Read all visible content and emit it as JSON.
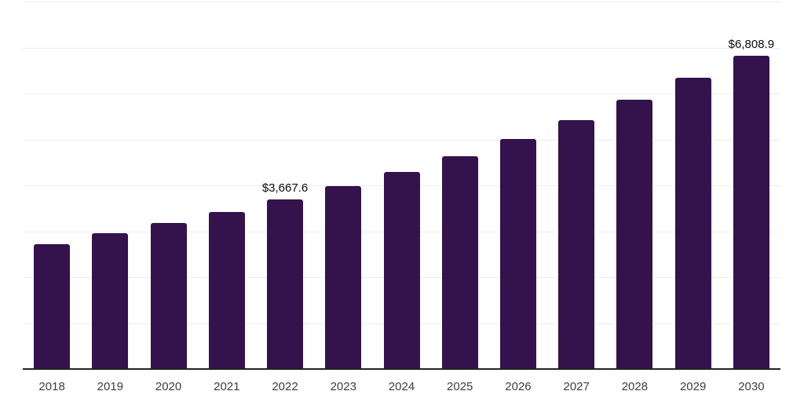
{
  "chart_data": {
    "type": "bar",
    "title": "",
    "xlabel": "",
    "ylabel": "",
    "categories": [
      "2018",
      "2019",
      "2020",
      "2021",
      "2022",
      "2023",
      "2024",
      "2025",
      "2026",
      "2027",
      "2028",
      "2029",
      "2030"
    ],
    "values": [
      2700.0,
      2935.0,
      3160.0,
      3400.0,
      3667.6,
      3962.0,
      4275.0,
      4617.0,
      4990.0,
      5400.0,
      5840.0,
      6322.0,
      6808.9
    ],
    "value_labels": [
      "",
      "",
      "",
      "",
      "$3,667.6",
      "",
      "",
      "",
      "",
      "",
      "",
      "",
      "$6,808.9"
    ],
    "ylim": [
      0,
      8000
    ],
    "grid_step": 1000,
    "grid": "horizontal-only",
    "y_tick_labels_visible": false,
    "legend_position": "none",
    "bar_color": "#34124B",
    "grid_color": "#ededed",
    "axis_color": "#222222",
    "tick_label_color": "#3d3d3d",
    "value_label_color": "#0a0a0a"
  }
}
